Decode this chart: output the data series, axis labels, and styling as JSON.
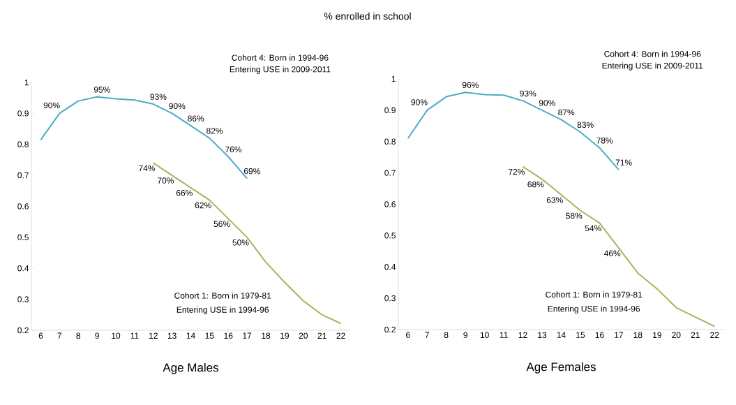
{
  "chart_data": [
    {
      "type": "line",
      "title": "% enrolled in school",
      "xlabel": "Age Males",
      "categories": [
        "6",
        "7",
        "8",
        "9",
        "10",
        "11",
        "12",
        "13",
        "14",
        "15",
        "16",
        "17",
        "18",
        "19",
        "20",
        "21",
        "22"
      ],
      "ylim": [
        0.2,
        1
      ],
      "yticks": [
        0.2,
        0.3,
        0.4,
        0.5,
        0.6,
        0.7,
        0.8,
        0.9,
        1
      ],
      "annotations": [
        "Cohort 4: Born in 1994-96",
        "Entering USE in 2009-2011",
        "Cohort 1: Born in 1979-81",
        "Entering USE in 1994-96"
      ],
      "series": [
        {
          "color": "#4bacc6",
          "values": [
            0.815,
            0.9,
            0.94,
            0.953,
            0.947,
            0.943,
            0.93,
            0.9,
            0.86,
            0.82,
            0.76,
            0.69,
            null,
            null,
            null,
            null,
            null
          ],
          "value_labels": [
            null,
            "90%",
            null,
            "95%",
            null,
            null,
            "93%",
            "90%",
            "86%",
            "82%",
            "76%",
            "69%",
            null,
            null,
            null,
            null,
            null
          ]
        },
        {
          "color": "#9bbb59",
          "values": [
            null,
            null,
            null,
            null,
            null,
            null,
            0.74,
            0.7,
            0.66,
            0.62,
            0.56,
            0.5,
            0.42,
            0.355,
            0.295,
            0.25,
            0.222
          ],
          "value_labels": [
            null,
            null,
            null,
            null,
            null,
            null,
            "74%",
            "70%",
            "66%",
            "62%",
            "56%",
            "50%",
            null,
            null,
            null,
            null,
            null
          ]
        }
      ]
    },
    {
      "type": "line",
      "xlabel": "Age Females",
      "categories": [
        "6",
        "7",
        "8",
        "9",
        "10",
        "11",
        "12",
        "13",
        "14",
        "15",
        "16",
        "17",
        "18",
        "19",
        "20",
        "21",
        "22"
      ],
      "ylim": [
        0.2,
        1
      ],
      "yticks": [
        0.2,
        0.3,
        0.4,
        0.5,
        0.6,
        0.7,
        0.8,
        0.9,
        1
      ],
      "annotations": [
        "Cohort 4: Born in 1994-96",
        "Entering USE in 2009-2011",
        "Cohort 1: Born in 1979-81",
        "Entering USE in 1994-96"
      ],
      "series": [
        {
          "color": "#4bacc6",
          "values": [
            0.81,
            0.9,
            0.943,
            0.957,
            0.95,
            0.948,
            0.93,
            0.9,
            0.87,
            0.83,
            0.78,
            0.71,
            null,
            null,
            null,
            null,
            null
          ],
          "value_labels": [
            null,
            "90%",
            null,
            "96%",
            null,
            null,
            "93%",
            "90%",
            "87%",
            "83%",
            "78%",
            "71%",
            null,
            null,
            null,
            null,
            null
          ]
        },
        {
          "color": "#9bbb59",
          "values": [
            null,
            null,
            null,
            null,
            null,
            null,
            0.72,
            0.68,
            0.63,
            0.58,
            0.54,
            0.46,
            0.38,
            0.33,
            0.27,
            0.24,
            0.21
          ],
          "value_labels": [
            null,
            null,
            null,
            null,
            null,
            null,
            "72%",
            "68%",
            "63%",
            "58%",
            "54%",
            "46%",
            null,
            null,
            null,
            null,
            null
          ]
        }
      ]
    }
  ]
}
